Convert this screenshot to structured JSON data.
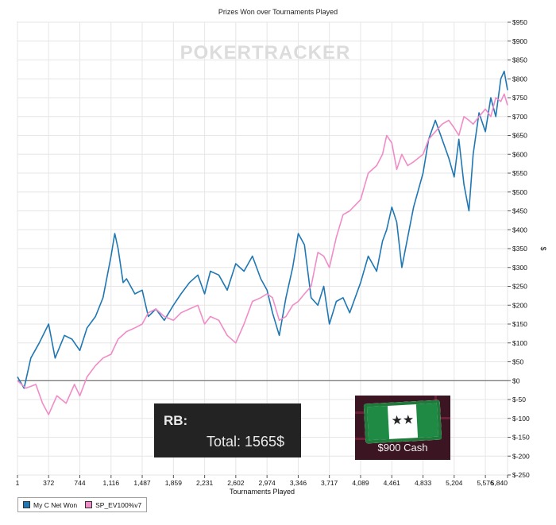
{
  "chart_data": {
    "type": "line",
    "title": "Prizes Won over Tournaments Played",
    "xlabel": "Tournaments Played",
    "ylabel": "$",
    "xlim": [
      1,
      5840
    ],
    "ylim": [
      -250,
      950
    ],
    "x_ticks": [
      1,
      372,
      744,
      1116,
      1487,
      1859,
      2231,
      2602,
      2974,
      3346,
      3717,
      4089,
      4461,
      4833,
      5204,
      5576,
      5840
    ],
    "y_ticks": [
      -250,
      -200,
      -150,
      -100,
      -50,
      0,
      50,
      100,
      150,
      200,
      250,
      300,
      350,
      400,
      450,
      500,
      550,
      600,
      650,
      700,
      750,
      800,
      850,
      900,
      950
    ],
    "y_tick_labels": [
      "$-250",
      "$-200",
      "$-150",
      "$-100",
      "$-50",
      "$0",
      "$50",
      "$100",
      "$150",
      "$200",
      "$250",
      "$300",
      "$350",
      "$400",
      "$450",
      "$500",
      "$550",
      "$600",
      "$650",
      "$700",
      "$750",
      "$800",
      "$850",
      "$900",
      "$950"
    ],
    "grid": true,
    "legend_position": "bottom-left",
    "watermark": "POKERTRACKER",
    "series": [
      {
        "name": "My C Net Won",
        "color": "#1f77b4",
        "x": [
          1,
          80,
          160,
          260,
          372,
          450,
          560,
          650,
          744,
          830,
          930,
          1020,
          1116,
          1160,
          1200,
          1260,
          1300,
          1400,
          1487,
          1560,
          1650,
          1750,
          1859,
          1950,
          2050,
          2150,
          2231,
          2300,
          2400,
          2500,
          2602,
          2700,
          2800,
          2900,
          2974,
          3040,
          3120,
          3200,
          3280,
          3346,
          3420,
          3500,
          3580,
          3650,
          3717,
          3800,
          3880,
          3960,
          4089,
          4180,
          4280,
          4350,
          4400,
          4461,
          4520,
          4580,
          4650,
          4720,
          4833,
          4900,
          4980,
          5060,
          5140,
          5204,
          5260,
          5320,
          5380,
          5430,
          5500,
          5576,
          5640,
          5700,
          5760,
          5800,
          5840
        ],
        "values": [
          10,
          -20,
          60,
          100,
          150,
          60,
          120,
          110,
          80,
          140,
          170,
          220,
          330,
          390,
          350,
          260,
          270,
          230,
          240,
          170,
          190,
          160,
          200,
          230,
          260,
          280,
          230,
          290,
          280,
          240,
          310,
          290,
          330,
          270,
          240,
          180,
          120,
          220,
          300,
          390,
          360,
          220,
          200,
          250,
          150,
          210,
          220,
          180,
          260,
          330,
          290,
          370,
          400,
          460,
          420,
          300,
          380,
          460,
          550,
          640,
          690,
          640,
          590,
          540,
          640,
          520,
          450,
          600,
          710,
          660,
          750,
          700,
          800,
          820,
          770
        ]
      },
      {
        "name": "SP_EV100%v7",
        "color": "#f08cc8",
        "x": [
          1,
          100,
          220,
          300,
          372,
          470,
          580,
          680,
          744,
          830,
          930,
          1020,
          1116,
          1200,
          1300,
          1400,
          1487,
          1560,
          1650,
          1750,
          1859,
          1950,
          2050,
          2150,
          2231,
          2300,
          2400,
          2500,
          2602,
          2700,
          2800,
          2900,
          2974,
          3040,
          3120,
          3200,
          3280,
          3346,
          3420,
          3500,
          3580,
          3650,
          3717,
          3800,
          3880,
          3960,
          4089,
          4180,
          4280,
          4350,
          4400,
          4461,
          4520,
          4580,
          4650,
          4720,
          4833,
          4900,
          4980,
          5060,
          5140,
          5204,
          5260,
          5320,
          5380,
          5430,
          5500,
          5576,
          5640,
          5700,
          5760,
          5800,
          5840
        ],
        "values": [
          0,
          -20,
          -10,
          -60,
          -90,
          -40,
          -60,
          -10,
          -40,
          10,
          40,
          60,
          70,
          110,
          130,
          140,
          150,
          180,
          190,
          170,
          160,
          180,
          190,
          200,
          150,
          170,
          160,
          120,
          100,
          150,
          210,
          220,
          230,
          220,
          160,
          170,
          200,
          210,
          230,
          250,
          340,
          330,
          300,
          380,
          440,
          450,
          480,
          550,
          570,
          600,
          650,
          630,
          560,
          600,
          570,
          580,
          600,
          640,
          660,
          680,
          690,
          670,
          650,
          700,
          690,
          680,
          700,
          720,
          700,
          750,
          740,
          760,
          730
        ]
      }
    ]
  },
  "rb_panel": {
    "label": "RB:",
    "total": "Total: 1565$"
  },
  "cash_badge": {
    "label": "$900 Cash"
  }
}
